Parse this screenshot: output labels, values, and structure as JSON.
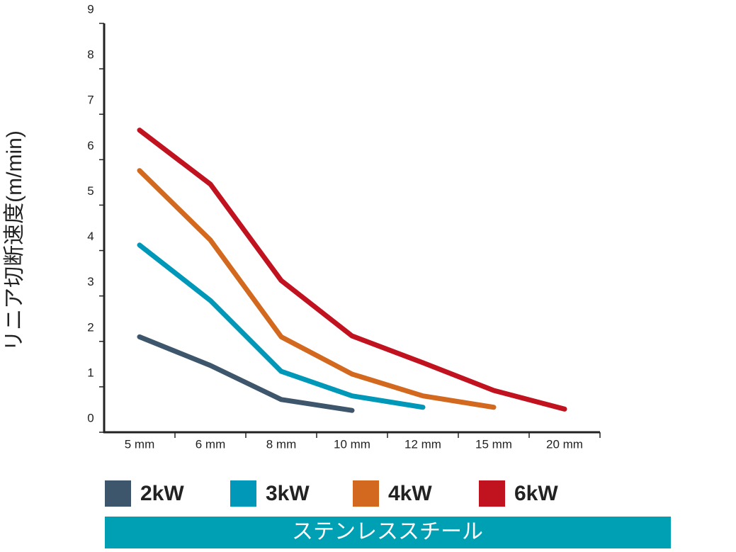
{
  "chart_data": {
    "type": "line",
    "ylabel": "リニア切断速度(m/min)",
    "categories": [
      "5 mm",
      "6 mm",
      "8 mm",
      "10 mm",
      "12 mm",
      "15 mm",
      "20 mm"
    ],
    "series": [
      {
        "name": "2kW",
        "color": "#3d566b",
        "values": [
          2.1,
          1.47,
          0.72,
          0.48,
          null,
          null,
          null
        ]
      },
      {
        "name": "3kW",
        "color": "#0098b8",
        "values": [
          4.12,
          2.9,
          1.34,
          0.8,
          0.55,
          null,
          null
        ]
      },
      {
        "name": "4kW",
        "color": "#d2691e",
        "values": [
          5.76,
          4.23,
          2.1,
          1.28,
          0.8,
          0.55,
          null
        ]
      },
      {
        "name": "6kW",
        "color": "#c1121f",
        "values": [
          6.65,
          5.46,
          3.34,
          2.12,
          1.53,
          0.92,
          0.51
        ]
      }
    ],
    "ylim": [
      0,
      9
    ],
    "yticks": [
      0,
      1,
      2,
      3,
      4,
      5,
      6,
      7,
      8,
      9
    ],
    "banner": "ステンレススチール",
    "banner_color": "#00a0b4"
  }
}
